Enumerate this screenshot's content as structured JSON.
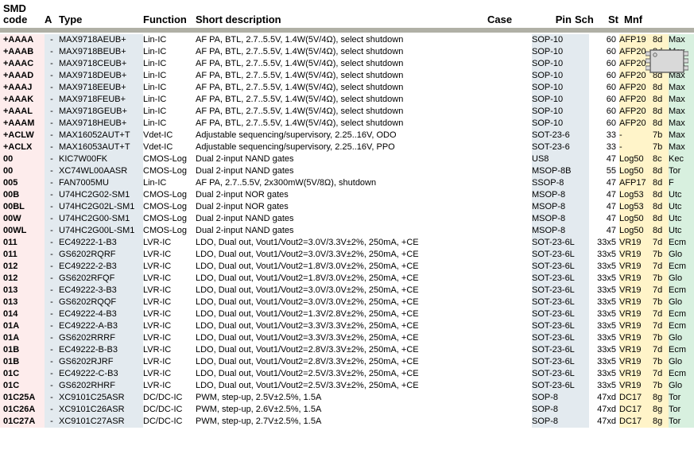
{
  "columns": {
    "code_l1": "SMD",
    "code_l2": "code",
    "a": "A",
    "type": "Type",
    "function": "Function",
    "desc": "Short description",
    "case": "Case",
    "pin": "Pin",
    "sch": "Sch",
    "st": "St",
    "mnf": "Mnf"
  },
  "colors": {
    "code_bg": "#fdecec",
    "type_bg": "#e3eaef",
    "sch_bg": "#fff4c9",
    "mnf_bg": "#d8f0df",
    "sep": "#b0b0a6",
    "chip_body": "#d9d9d9",
    "chip_stroke": "#666666"
  },
  "rows": [
    {
      "code": "+AAAA",
      "a": "-",
      "type": "MAX9718AEUB+",
      "func": "Lin-IC",
      "desc": "AF PA, BTL, 2.7..5.5V, 1.4W(5V/4Ω), select shutdown",
      "case": "SOP-10",
      "pin": "60",
      "sch": "AFP19",
      "st": "8d",
      "mnf": "Max"
    },
    {
      "code": "+AAAB",
      "a": "-",
      "type": "MAX9718BEUB+",
      "func": "Lin-IC",
      "desc": "AF PA, BTL, 2.7..5.5V, 1.4W(5V/4Ω), select shutdown",
      "case": "SOP-10",
      "pin": "60",
      "sch": "AFP20",
      "st": "8d",
      "mnf": "Max"
    },
    {
      "code": "+AAAC",
      "a": "-",
      "type": "MAX9718CEUB+",
      "func": "Lin-IC",
      "desc": "AF PA, BTL, 2.7..5.5V, 1.4W(5V/4Ω), select shutdown",
      "case": "SOP-10",
      "pin": "60",
      "sch": "AFP20",
      "st": "8d",
      "mnf": "Max"
    },
    {
      "code": "+AAAD",
      "a": "-",
      "type": "MAX9718DEUB+",
      "func": "Lin-IC",
      "desc": "AF PA, BTL, 2.7..5.5V, 1.4W(5V/4Ω), select shutdown",
      "case": "SOP-10",
      "pin": "60",
      "sch": "AFP20",
      "st": "8d",
      "mnf": "Max"
    },
    {
      "code": "+AAAJ",
      "a": "-",
      "type": "MAX9718EEUB+",
      "func": "Lin-IC",
      "desc": "AF PA, BTL, 2.7..5.5V, 1.4W(5V/4Ω), select shutdown",
      "case": "SOP-10",
      "pin": "60",
      "sch": "AFP20",
      "st": "8d",
      "mnf": "Max"
    },
    {
      "code": "+AAAK",
      "a": "-",
      "type": "MAX9718FEUB+",
      "func": "Lin-IC",
      "desc": "AF PA, BTL, 2.7..5.5V, 1.4W(5V/4Ω), select shutdown",
      "case": "SOP-10",
      "pin": "60",
      "sch": "AFP20",
      "st": "8d",
      "mnf": "Max"
    },
    {
      "code": "+AAAL",
      "a": "-",
      "type": "MAX9718GEUB+",
      "func": "Lin-IC",
      "desc": "AF PA, BTL, 2.7..5.5V, 1.4W(5V/4Ω), select shutdown",
      "case": "SOP-10",
      "pin": "60",
      "sch": "AFP20",
      "st": "8d",
      "mnf": "Max"
    },
    {
      "code": "+AAAM",
      "a": "-",
      "type": "MAX9718HEUB+",
      "func": "Lin-IC",
      "desc": "AF PA, BTL, 2.7..5.5V, 1.4W(5V/4Ω), select shutdown",
      "case": "SOP-10",
      "pin": "60",
      "sch": "AFP20",
      "st": "8d",
      "mnf": "Max"
    },
    {
      "code": "+ACLW",
      "a": "-",
      "type": "MAX16052AUT+T",
      "func": "Vdet-IC",
      "desc": "Adjustable sequencing/supervisory, 2.25..16V, ODO",
      "case": "SOT-23-6",
      "pin": "33",
      "sch": "-",
      "st": "7b",
      "mnf": "Max"
    },
    {
      "code": "+ACLX",
      "a": "-",
      "type": "MAX16053AUT+T",
      "func": "Vdet-IC",
      "desc": "Adjustable sequencing/supervisory, 2.25..16V, PPO",
      "case": "SOT-23-6",
      "pin": "33",
      "sch": "-",
      "st": "7b",
      "mnf": "Max"
    },
    {
      "code": "00",
      "a": "-",
      "type": "KIC7W00FK",
      "func": "CMOS-Log",
      "desc": "Dual 2-input NAND gates",
      "case": "US8",
      "pin": "47",
      "sch": "Log50",
      "st": "8c",
      "mnf": "Kec"
    },
    {
      "code": "00",
      "a": "-",
      "type": "XC74WL00AASR",
      "func": "CMOS-Log",
      "desc": "Dual 2-input NAND gates",
      "case": "MSOP-8B",
      "pin": "55",
      "sch": "Log50",
      "st": "8d",
      "mnf": "Tor"
    },
    {
      "code": "005",
      "a": "-",
      "type": "FAN7005MU",
      "func": "Lin-IC",
      "desc": "AF PA, 2.7..5.5V, 2x300mW(5V/8Ω), shutdown",
      "case": "SSOP-8",
      "pin": "47",
      "sch": "AFP17",
      "st": "8d",
      "mnf": "F"
    },
    {
      "code": "00B",
      "a": "-",
      "type": "U74HC2G02-SM1",
      "func": "CMOS-Log",
      "desc": "Dual 2-input NOR gates",
      "case": "MSOP-8",
      "pin": "47",
      "sch": "Log53",
      "st": "8d",
      "mnf": "Utc"
    },
    {
      "code": "00BL",
      "a": "-",
      "type": "U74HC2G02L-SM1",
      "func": "CMOS-Log",
      "desc": "Dual 2-input NOR gates",
      "case": "MSOP-8",
      "pin": "47",
      "sch": "Log53",
      "st": "8d",
      "mnf": "Utc"
    },
    {
      "code": "00W",
      "a": "-",
      "type": "U74HC2G00-SM1",
      "func": "CMOS-Log",
      "desc": "Dual 2-input NAND gates",
      "case": "MSOP-8",
      "pin": "47",
      "sch": "Log50",
      "st": "8d",
      "mnf": "Utc"
    },
    {
      "code": "00WL",
      "a": "-",
      "type": "U74HC2G00L-SM1",
      "func": "CMOS-Log",
      "desc": "Dual 2-input NAND gates",
      "case": "MSOP-8",
      "pin": "47",
      "sch": "Log50",
      "st": "8d",
      "mnf": "Utc"
    },
    {
      "code": "011",
      "a": "-",
      "type": "EC49222-1-B3",
      "func": "LVR-IC",
      "desc": "LDO, Dual out, Vout1/Vout2=3.0V/3.3V±2%, 250mA, +CE",
      "case": "SOT-23-6L",
      "pin": "33x5",
      "sch": "VR19",
      "st": "7d",
      "mnf": "Ecm"
    },
    {
      "code": "011",
      "a": "-",
      "type": "GS6202RQRF",
      "func": "LVR-IC",
      "desc": "LDO, Dual out, Vout1/Vout2=3.0V/3.3V±2%, 250mA, +CE",
      "case": "SOT-23-6L",
      "pin": "33x5",
      "sch": "VR19",
      "st": "7b",
      "mnf": "Glo"
    },
    {
      "code": "012",
      "a": "-",
      "type": "EC49222-2-B3",
      "func": "LVR-IC",
      "desc": "LDO, Dual out, Vout1/Vout2=1.8V/3.0V±2%, 250mA, +CE",
      "case": "SOT-23-6L",
      "pin": "33x5",
      "sch": "VR19",
      "st": "7d",
      "mnf": "Ecm"
    },
    {
      "code": "012",
      "a": "-",
      "type": "GS6202RFQF",
      "func": "LVR-IC",
      "desc": "LDO, Dual out, Vout1/Vout2=1.8V/3.0V±2%, 250mA, +CE",
      "case": "SOT-23-6L",
      "pin": "33x5",
      "sch": "VR19",
      "st": "7b",
      "mnf": "Glo"
    },
    {
      "code": "013",
      "a": "-",
      "type": "EC49222-3-B3",
      "func": "LVR-IC",
      "desc": "LDO, Dual out, Vout1/Vout2=3.0V/3.0V±2%, 250mA, +CE",
      "case": "SOT-23-6L",
      "pin": "33x5",
      "sch": "VR19",
      "st": "7d",
      "mnf": "Ecm"
    },
    {
      "code": "013",
      "a": "-",
      "type": "GS6202RQQF",
      "func": "LVR-IC",
      "desc": "LDO, Dual out, Vout1/Vout2=3.0V/3.0V±2%, 250mA, +CE",
      "case": "SOT-23-6L",
      "pin": "33x5",
      "sch": "VR19",
      "st": "7b",
      "mnf": "Glo"
    },
    {
      "code": "014",
      "a": "-",
      "type": "EC49222-4-B3",
      "func": "LVR-IC",
      "desc": "LDO, Dual out, Vout1/Vout2=1.3V/2.8V±2%, 250mA, +CE",
      "case": "SOT-23-6L",
      "pin": "33x5",
      "sch": "VR19",
      "st": "7d",
      "mnf": "Ecm"
    },
    {
      "code": "01A",
      "a": "-",
      "type": "EC49222-A-B3",
      "func": "LVR-IC",
      "desc": "LDO, Dual out, Vout1/Vout2=3.3V/3.3V±2%, 250mA, +CE",
      "case": "SOT-23-6L",
      "pin": "33x5",
      "sch": "VR19",
      "st": "7d",
      "mnf": "Ecm"
    },
    {
      "code": "01A",
      "a": "-",
      "type": "GS6202RRRF",
      "func": "LVR-IC",
      "desc": "LDO, Dual out, Vout1/Vout2=3.3V/3.3V±2%, 250mA, +CE",
      "case": "SOT-23-6L",
      "pin": "33x5",
      "sch": "VR19",
      "st": "7b",
      "mnf": "Glo"
    },
    {
      "code": "01B",
      "a": "-",
      "type": "EC49222-B-B3",
      "func": "LVR-IC",
      "desc": "LDO, Dual out, Vout1/Vout2=2.8V/3.3V±2%, 250mA, +CE",
      "case": "SOT-23-6L",
      "pin": "33x5",
      "sch": "VR19",
      "st": "7d",
      "mnf": "Ecm"
    },
    {
      "code": "01B",
      "a": "-",
      "type": "GS6202RJRF",
      "func": "LVR-IC",
      "desc": "LDO, Dual out, Vout1/Vout2=2.8V/3.3V±2%, 250mA, +CE",
      "case": "SOT-23-6L",
      "pin": "33x5",
      "sch": "VR19",
      "st": "7b",
      "mnf": "Glo"
    },
    {
      "code": "01C",
      "a": "-",
      "type": "EC49222-C-B3",
      "func": "LVR-IC",
      "desc": "LDO, Dual out, Vout1/Vout2=2.5V/3.3V±2%, 250mA, +CE",
      "case": "SOT-23-6L",
      "pin": "33x5",
      "sch": "VR19",
      "st": "7d",
      "mnf": "Ecm"
    },
    {
      "code": "01C",
      "a": "-",
      "type": "GS6202RHRF",
      "func": "LVR-IC",
      "desc": "LDO, Dual out, Vout1/Vout2=2.5V/3.3V±2%, 250mA, +CE",
      "case": "SOT-23-6L",
      "pin": "33x5",
      "sch": "VR19",
      "st": "7b",
      "mnf": "Glo"
    },
    {
      "code": "01C25A",
      "a": "-",
      "type": "XC9101C25ASR",
      "func": "DC/DC-IC",
      "desc": "PWM, step-up, 2.5V±2.5%, 1.5A",
      "case": "SOP-8",
      "pin": "47xd",
      "sch": "DC17",
      "st": "8g",
      "mnf": "Tor"
    },
    {
      "code": "01C26A",
      "a": "-",
      "type": "XC9101C26ASR",
      "func": "DC/DC-IC",
      "desc": "PWM, step-up, 2.6V±2.5%, 1.5A",
      "case": "SOP-8",
      "pin": "47xd",
      "sch": "DC17",
      "st": "8g",
      "mnf": "Tor"
    },
    {
      "code": "01C27A",
      "a": "-",
      "type": "XC9101C27ASR",
      "func": "DC/DC-IC",
      "desc": "PWM, step-up, 2.7V±2.5%, 1.5A",
      "case": "SOP-8",
      "pin": "47xd",
      "sch": "DC17",
      "st": "8g",
      "mnf": "Tor"
    }
  ]
}
